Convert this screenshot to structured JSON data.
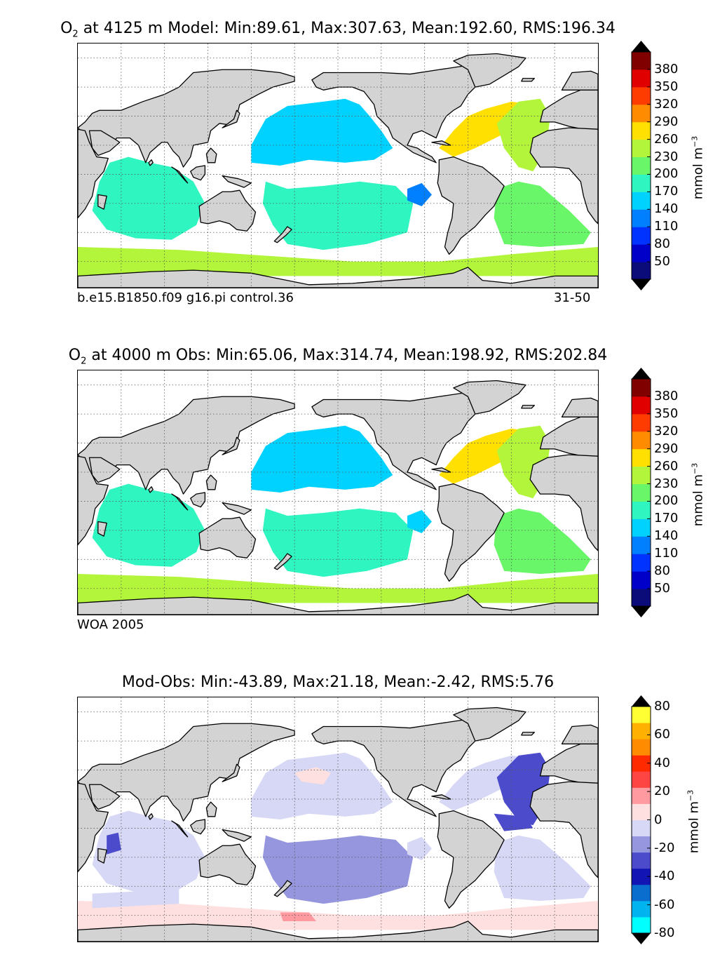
{
  "panels": [
    {
      "id": "model",
      "title_species": "O",
      "title_sub": "2",
      "title_rest": "at 4125 m Model: Min:89.61, Max:307.63, Mean:192.60, RMS:196.34",
      "footer_left": "b.e15.B1850.f09 g16.pi control.36",
      "footer_right": "31-50"
    },
    {
      "id": "obs",
      "title_species": "O",
      "title_sub": "2",
      "title_rest": "at 4000 m Obs: Min:65.06, Max:314.74, Mean:198.92, RMS:202.84",
      "footer_left": "WOA 2005",
      "footer_right": ""
    },
    {
      "id": "diff",
      "title_species": "",
      "title_sub": "",
      "title_rest": "Mod-Obs: Min:-43.89, Max:21.18, Mean:-2.42, RMS:5.76",
      "footer_left": "",
      "footer_right": ""
    }
  ],
  "colorbars": {
    "absolute": {
      "ticks": [
        "380",
        "350",
        "320",
        "290",
        "260",
        "230",
        "200",
        "170",
        "140",
        "110",
        "80",
        "50"
      ],
      "colors": [
        "#0b0b7a",
        "#0000c8",
        "#0033ff",
        "#007fff",
        "#00d2ff",
        "#2ff5c0",
        "#69f669",
        "#b3f53a",
        "#ffe000",
        "#ff8c00",
        "#ff3c00",
        "#e00000",
        "#800000"
      ],
      "over_color": "#000000",
      "under_color": "#000000",
      "units_text": "mmol m",
      "units_sup": "−3"
    },
    "difference": {
      "ticks": [
        "80",
        "60",
        "40",
        "20",
        "0",
        "-20",
        "-40",
        "-60",
        "-80"
      ],
      "colors": [
        "#00ffff",
        "#00b4f0",
        "#0a6ecf",
        "#1214b4",
        "#4b4bcc",
        "#9696de",
        "#d6d8f5",
        "#ffe0e0",
        "#ff9aa0",
        "#ff4444",
        "#ff2a00",
        "#ff8c00",
        "#ffb000",
        "#ffff33"
      ],
      "over_color": "#000000",
      "under_color": "#000000",
      "units_text": "mmol m",
      "units_sup": "−3"
    }
  },
  "map": {
    "land_color": "#d3d3d3",
    "ocean_missing_color": "#ffffff",
    "lon_range": [
      30,
      390
    ],
    "lat_range": [
      -78,
      90
    ],
    "gridline_style": "dotted",
    "field_color": {
      "model": {
        "north_pacific": "#00d2ff",
        "south_pacific": "#2ff5c0",
        "indian": "#2ff5c0",
        "north_atlantic": "#ffe000",
        "atlantic_subtrop": "#b3f53a",
        "south_atlantic": "#69f669",
        "southern_ocean": "#b3f53a",
        "east_pacific": "#0080ff"
      },
      "obs": {
        "north_pacific": "#00d2ff",
        "south_pacific": "#2ff5c0",
        "indian": "#2ff5c0",
        "north_atlantic": "#ffe000",
        "atlantic_subtrop": "#b3f53a",
        "south_atlantic": "#69f669",
        "southern_ocean": "#b3f53a",
        "east_pacific": "#00d2ff"
      },
      "diff": {
        "north_pacific": "#d6d8f5",
        "south_pacific": "#9696de",
        "indian": "#d6d8f5",
        "north_atlantic": "#d6d8f5",
        "atlantic_subtrop": "#4b4bcc",
        "south_atlantic": "#d6d8f5",
        "southern_ocean": "#ffe0e0",
        "east_pacific": "#d6d8f5"
      }
    }
  }
}
